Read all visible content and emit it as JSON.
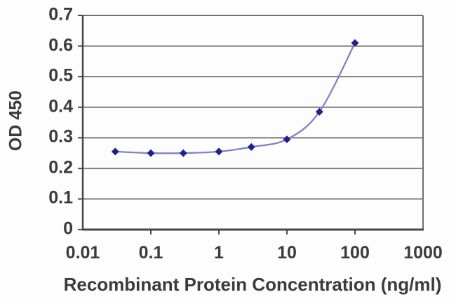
{
  "chart_data": {
    "type": "line",
    "title": "",
    "xlabel": "Recombinant Protein Concentration (ng/ml)",
    "ylabel": "OD 450",
    "x_scale": "log",
    "xlim": [
      0.01,
      1000
    ],
    "ylim": [
      0,
      0.7
    ],
    "x_ticks": [
      "0.01",
      "0.1",
      "1",
      "10",
      "100",
      "1000"
    ],
    "y_ticks": [
      "0",
      "0.1",
      "0.2",
      "0.3",
      "0.4",
      "0.5",
      "0.6",
      "0.7"
    ],
    "grid": "horizontal",
    "legend": "none",
    "series": [
      {
        "name": "OD 450",
        "marker": "diamond",
        "line_style": "smooth",
        "x": [
          0.03,
          0.1,
          0.3,
          1,
          3,
          10,
          30,
          100
        ],
        "y": [
          0.255,
          0.25,
          0.25,
          0.255,
          0.27,
          0.295,
          0.385,
          0.61
        ]
      }
    ],
    "colors": {
      "marker": "#21218e",
      "line": "#8181c6",
      "grid": "#7d7d7d",
      "axis": "#474747",
      "frame": "#6e6e6e",
      "text": "#3b3b3b"
    }
  }
}
